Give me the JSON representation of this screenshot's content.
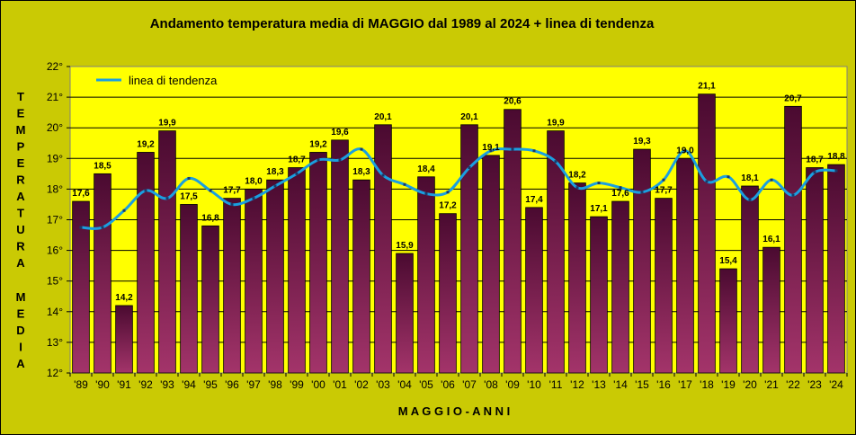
{
  "chart_data": {
    "type": "bar",
    "title": "Andamento temperatura media di MAGGIO dal 1989 al 2024 + linea di tendenza",
    "xlabel": "MAGGIO - ANNI",
    "ylabel": "TEMPERATURA MEDIA",
    "ylim": [
      12,
      22
    ],
    "y_ticks": [
      "12°",
      "13°",
      "14°",
      "15°",
      "16°",
      "17°",
      "18°",
      "19°",
      "20°",
      "21°",
      "22°"
    ],
    "grid": true,
    "legend_position": "top-left",
    "categories": [
      "'89",
      "'90",
      "'91",
      "'92",
      "'93",
      "'94",
      "'95",
      "'96",
      "'97",
      "'98",
      "'99",
      "'00",
      "'01",
      "'02",
      "'03",
      "'04",
      "'05",
      "'06",
      "'07",
      "'08",
      "'09",
      "'10",
      "'11",
      "'12",
      "'13",
      "'14",
      "'15",
      "'16",
      "'17",
      "'18",
      "'19",
      "'20",
      "'21",
      "'22",
      "'23",
      "'24"
    ],
    "series": [
      {
        "type": "bar",
        "values": [
          17.6,
          18.5,
          14.2,
          19.2,
          19.9,
          17.5,
          16.8,
          17.7,
          18.0,
          18.3,
          18.7,
          19.2,
          19.6,
          18.3,
          20.1,
          15.9,
          18.4,
          17.2,
          20.1,
          19.1,
          20.6,
          17.4,
          19.9,
          18.2,
          17.1,
          17.6,
          19.3,
          17.7,
          19.0,
          21.1,
          15.4,
          18.1,
          16.1,
          20.7,
          18.7,
          18.8
        ],
        "labels": [
          "17,6",
          "18,5",
          "14,2",
          "19,2",
          "19,9",
          "17,5",
          "16,8",
          "17,7",
          "18,0",
          "18,3",
          "18,7",
          "19,2",
          "19,6",
          "18,3",
          "20,1",
          "15,9",
          "18,4",
          "17,2",
          "20,1",
          "19,1",
          "20,6",
          "17,4",
          "19,9",
          "18,2",
          "17,1",
          "17,6",
          "19,3",
          "17,7",
          "19,0",
          "21,1",
          "15,4",
          "18,1",
          "16,1",
          "20,7",
          "18,7",
          "18,8"
        ]
      },
      {
        "type": "line",
        "name": "linea di tendenza",
        "values": [
          16.75,
          16.75,
          17.3,
          17.95,
          17.7,
          18.35,
          17.95,
          17.5,
          17.7,
          18.1,
          18.5,
          18.95,
          18.95,
          19.3,
          18.45,
          18.15,
          17.85,
          17.9,
          18.7,
          19.25,
          19.3,
          19.25,
          18.9,
          18.05,
          18.2,
          18.05,
          17.9,
          18.3,
          19.25,
          18.25,
          18.4,
          17.65,
          18.3,
          17.8,
          18.55,
          18.6
        ]
      }
    ],
    "colors": {
      "plot_background": "#ffff00",
      "outer_background": "#caca04",
      "bar_top": "#4a0a30",
      "bar_bottom": "#a3346a",
      "trend_line": "#1a9fe0",
      "trend_markers": "#1a3a6a"
    }
  }
}
